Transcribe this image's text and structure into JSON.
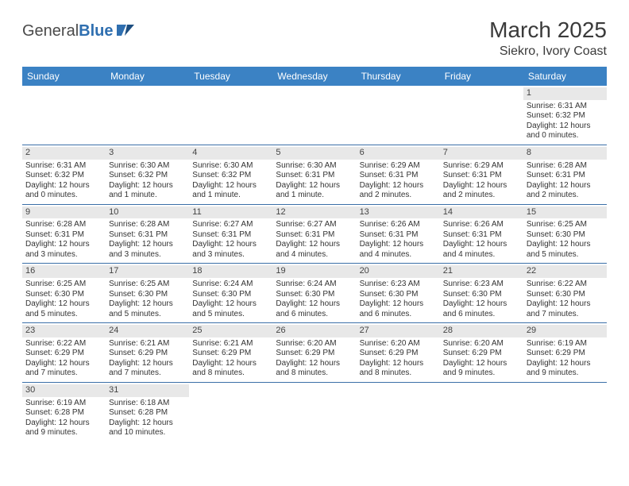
{
  "logo": {
    "text1": "General",
    "text2": "Blue"
  },
  "title": "March 2025",
  "location": "Siekro, Ivory Coast",
  "colors": {
    "header_bg": "#3b82c4",
    "header_fg": "#ffffff",
    "week_divider": "#3b6fa8",
    "daynum_bg": "#e8e8e8"
  },
  "dayNames": [
    "Sunday",
    "Monday",
    "Tuesday",
    "Wednesday",
    "Thursday",
    "Friday",
    "Saturday"
  ],
  "weeks": [
    [
      {
        "n": "",
        "sr": "",
        "ss": "",
        "dl": ""
      },
      {
        "n": "",
        "sr": "",
        "ss": "",
        "dl": ""
      },
      {
        "n": "",
        "sr": "",
        "ss": "",
        "dl": ""
      },
      {
        "n": "",
        "sr": "",
        "ss": "",
        "dl": ""
      },
      {
        "n": "",
        "sr": "",
        "ss": "",
        "dl": ""
      },
      {
        "n": "",
        "sr": "",
        "ss": "",
        "dl": ""
      },
      {
        "n": "1",
        "sr": "Sunrise: 6:31 AM",
        "ss": "Sunset: 6:32 PM",
        "dl": "Daylight: 12 hours and 0 minutes."
      }
    ],
    [
      {
        "n": "2",
        "sr": "Sunrise: 6:31 AM",
        "ss": "Sunset: 6:32 PM",
        "dl": "Daylight: 12 hours and 0 minutes."
      },
      {
        "n": "3",
        "sr": "Sunrise: 6:30 AM",
        "ss": "Sunset: 6:32 PM",
        "dl": "Daylight: 12 hours and 1 minute."
      },
      {
        "n": "4",
        "sr": "Sunrise: 6:30 AM",
        "ss": "Sunset: 6:32 PM",
        "dl": "Daylight: 12 hours and 1 minute."
      },
      {
        "n": "5",
        "sr": "Sunrise: 6:30 AM",
        "ss": "Sunset: 6:31 PM",
        "dl": "Daylight: 12 hours and 1 minute."
      },
      {
        "n": "6",
        "sr": "Sunrise: 6:29 AM",
        "ss": "Sunset: 6:31 PM",
        "dl": "Daylight: 12 hours and 2 minutes."
      },
      {
        "n": "7",
        "sr": "Sunrise: 6:29 AM",
        "ss": "Sunset: 6:31 PM",
        "dl": "Daylight: 12 hours and 2 minutes."
      },
      {
        "n": "8",
        "sr": "Sunrise: 6:28 AM",
        "ss": "Sunset: 6:31 PM",
        "dl": "Daylight: 12 hours and 2 minutes."
      }
    ],
    [
      {
        "n": "9",
        "sr": "Sunrise: 6:28 AM",
        "ss": "Sunset: 6:31 PM",
        "dl": "Daylight: 12 hours and 3 minutes."
      },
      {
        "n": "10",
        "sr": "Sunrise: 6:28 AM",
        "ss": "Sunset: 6:31 PM",
        "dl": "Daylight: 12 hours and 3 minutes."
      },
      {
        "n": "11",
        "sr": "Sunrise: 6:27 AM",
        "ss": "Sunset: 6:31 PM",
        "dl": "Daylight: 12 hours and 3 minutes."
      },
      {
        "n": "12",
        "sr": "Sunrise: 6:27 AM",
        "ss": "Sunset: 6:31 PM",
        "dl": "Daylight: 12 hours and 4 minutes."
      },
      {
        "n": "13",
        "sr": "Sunrise: 6:26 AM",
        "ss": "Sunset: 6:31 PM",
        "dl": "Daylight: 12 hours and 4 minutes."
      },
      {
        "n": "14",
        "sr": "Sunrise: 6:26 AM",
        "ss": "Sunset: 6:31 PM",
        "dl": "Daylight: 12 hours and 4 minutes."
      },
      {
        "n": "15",
        "sr": "Sunrise: 6:25 AM",
        "ss": "Sunset: 6:30 PM",
        "dl": "Daylight: 12 hours and 5 minutes."
      }
    ],
    [
      {
        "n": "16",
        "sr": "Sunrise: 6:25 AM",
        "ss": "Sunset: 6:30 PM",
        "dl": "Daylight: 12 hours and 5 minutes."
      },
      {
        "n": "17",
        "sr": "Sunrise: 6:25 AM",
        "ss": "Sunset: 6:30 PM",
        "dl": "Daylight: 12 hours and 5 minutes."
      },
      {
        "n": "18",
        "sr": "Sunrise: 6:24 AM",
        "ss": "Sunset: 6:30 PM",
        "dl": "Daylight: 12 hours and 5 minutes."
      },
      {
        "n": "19",
        "sr": "Sunrise: 6:24 AM",
        "ss": "Sunset: 6:30 PM",
        "dl": "Daylight: 12 hours and 6 minutes."
      },
      {
        "n": "20",
        "sr": "Sunrise: 6:23 AM",
        "ss": "Sunset: 6:30 PM",
        "dl": "Daylight: 12 hours and 6 minutes."
      },
      {
        "n": "21",
        "sr": "Sunrise: 6:23 AM",
        "ss": "Sunset: 6:30 PM",
        "dl": "Daylight: 12 hours and 6 minutes."
      },
      {
        "n": "22",
        "sr": "Sunrise: 6:22 AM",
        "ss": "Sunset: 6:30 PM",
        "dl": "Daylight: 12 hours and 7 minutes."
      }
    ],
    [
      {
        "n": "23",
        "sr": "Sunrise: 6:22 AM",
        "ss": "Sunset: 6:29 PM",
        "dl": "Daylight: 12 hours and 7 minutes."
      },
      {
        "n": "24",
        "sr": "Sunrise: 6:21 AM",
        "ss": "Sunset: 6:29 PM",
        "dl": "Daylight: 12 hours and 7 minutes."
      },
      {
        "n": "25",
        "sr": "Sunrise: 6:21 AM",
        "ss": "Sunset: 6:29 PM",
        "dl": "Daylight: 12 hours and 8 minutes."
      },
      {
        "n": "26",
        "sr": "Sunrise: 6:20 AM",
        "ss": "Sunset: 6:29 PM",
        "dl": "Daylight: 12 hours and 8 minutes."
      },
      {
        "n": "27",
        "sr": "Sunrise: 6:20 AM",
        "ss": "Sunset: 6:29 PM",
        "dl": "Daylight: 12 hours and 8 minutes."
      },
      {
        "n": "28",
        "sr": "Sunrise: 6:20 AM",
        "ss": "Sunset: 6:29 PM",
        "dl": "Daylight: 12 hours and 9 minutes."
      },
      {
        "n": "29",
        "sr": "Sunrise: 6:19 AM",
        "ss": "Sunset: 6:29 PM",
        "dl": "Daylight: 12 hours and 9 minutes."
      }
    ],
    [
      {
        "n": "30",
        "sr": "Sunrise: 6:19 AM",
        "ss": "Sunset: 6:28 PM",
        "dl": "Daylight: 12 hours and 9 minutes."
      },
      {
        "n": "31",
        "sr": "Sunrise: 6:18 AM",
        "ss": "Sunset: 6:28 PM",
        "dl": "Daylight: 12 hours and 10 minutes."
      },
      {
        "n": "",
        "sr": "",
        "ss": "",
        "dl": ""
      },
      {
        "n": "",
        "sr": "",
        "ss": "",
        "dl": ""
      },
      {
        "n": "",
        "sr": "",
        "ss": "",
        "dl": ""
      },
      {
        "n": "",
        "sr": "",
        "ss": "",
        "dl": ""
      },
      {
        "n": "",
        "sr": "",
        "ss": "",
        "dl": ""
      }
    ]
  ]
}
